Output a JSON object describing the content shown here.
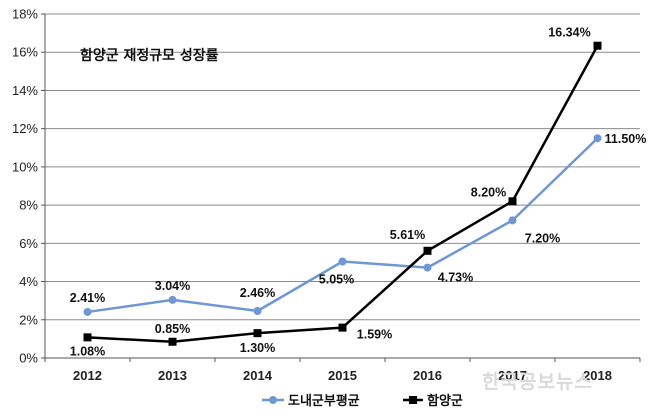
{
  "chart_data": {
    "type": "line",
    "title": "함양군 재정규모 성장률",
    "categories": [
      "2012",
      "2013",
      "2014",
      "2015",
      "2016",
      "2017",
      "2018"
    ],
    "ylim": [
      0,
      18
    ],
    "yticks": [
      0,
      2,
      4,
      6,
      8,
      10,
      12,
      14,
      16,
      18
    ],
    "ytick_labels": [
      "0%",
      "2%",
      "4%",
      "6%",
      "8%",
      "10%",
      "12%",
      "14%",
      "16%",
      "18%"
    ],
    "grid": true,
    "legend_position": "bottom",
    "series": [
      {
        "name": "도내군부평균",
        "color": "#6f97d3",
        "marker": "circle",
        "values": [
          2.41,
          3.04,
          2.46,
          5.05,
          4.73,
          7.2,
          11.5
        ],
        "labels": [
          "2.41%",
          "3.04%",
          "2.46%",
          "5.05%",
          "4.73%",
          "7.20%",
          "11.50%"
        ]
      },
      {
        "name": "함양군",
        "color": "#000000",
        "marker": "square",
        "values": [
          1.08,
          0.85,
          1.3,
          1.59,
          5.61,
          8.2,
          16.34
        ],
        "labels": [
          "1.08%",
          "0.85%",
          "1.30%",
          "1.59%",
          "5.61%",
          "8.20%",
          "16.34%"
        ]
      }
    ]
  },
  "watermark": "한국공보뉴스"
}
